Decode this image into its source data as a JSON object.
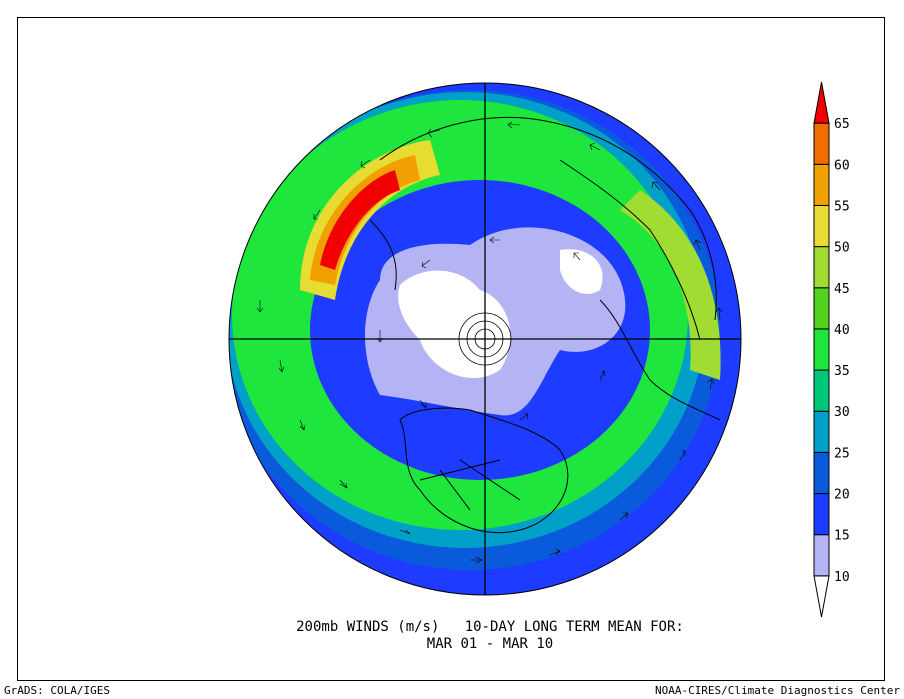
{
  "title": {
    "line1": "200mb WINDS (m/s)   10-DAY LONG TERM MEAN FOR:",
    "line2": "MAR 01 - MAR 10"
  },
  "footer": {
    "left": "GrADS: COLA/IGES",
    "right": "NOAA-CIRES/Climate Diagnostics Center"
  },
  "colorbar": {
    "levels": [
      {
        "value": "10",
        "color": "#ffffff"
      },
      {
        "value": "15",
        "color": "#b4b4f5"
      },
      {
        "value": "20",
        "color": "#1e3cff"
      },
      {
        "value": "25",
        "color": "#0a5adc"
      },
      {
        "value": "30",
        "color": "#00a0c8"
      },
      {
        "value": "35",
        "color": "#00c87a"
      },
      {
        "value": "40",
        "color": "#1ee63c"
      },
      {
        "value": "45",
        "color": "#50d21e"
      },
      {
        "value": "50",
        "color": "#a0dc32"
      },
      {
        "value": "55",
        "color": "#e6dc32"
      },
      {
        "value": "60",
        "color": "#f0a000"
      },
      {
        "value": "65",
        "color": "#f06e00"
      },
      {
        "value": "",
        "color": "#f00000"
      }
    ]
  },
  "map_colors": {
    "ocean_ring": "#0a5adc",
    "outer_blue": "#1e3cff",
    "green": "#1ee63c",
    "yellow": "#e6dc32",
    "orange": "#f0a000",
    "red": "#f00000",
    "lavender": "#b4b4f5",
    "white": "#ffffff"
  }
}
